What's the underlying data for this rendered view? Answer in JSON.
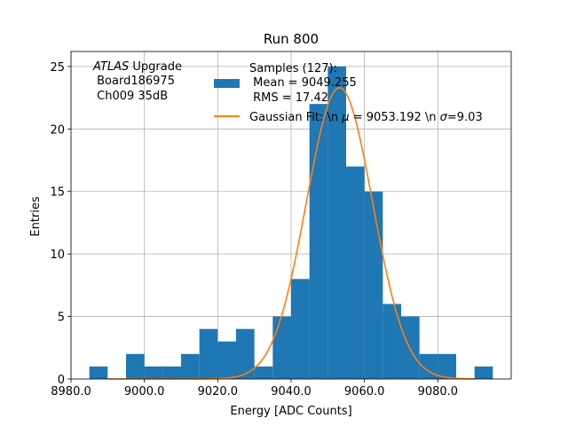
{
  "chart_data": {
    "type": "bar",
    "title": "Run 800",
    "xlabel": "Energy [ADC Counts]",
    "ylabel": "Entries",
    "xlim": [
      8980,
      9100
    ],
    "ylim": [
      0,
      26.2
    ],
    "xticks": [
      8980,
      9000,
      9020,
      9040,
      9060,
      9080
    ],
    "xtick_labels": [
      "8980.0",
      "9000.0",
      "9020.0",
      "9040.0",
      "9060.0",
      "9080.0"
    ],
    "yticks": [
      0,
      5,
      10,
      15,
      20,
      25
    ],
    "ytick_labels": [
      "0",
      "5",
      "10",
      "15",
      "20",
      "25"
    ],
    "grid": true,
    "histogram": {
      "bin_edges": [
        8985,
        8990,
        8995,
        9000,
        9005,
        9010,
        9015,
        9020,
        9025,
        9030,
        9035,
        9040,
        9045,
        9050,
        9055,
        9060,
        9065,
        9070,
        9075,
        9080,
        9085,
        9090,
        9095
      ],
      "counts": [
        1,
        0,
        2,
        1,
        1,
        2,
        4,
        3,
        4,
        1,
        5,
        8,
        22,
        25,
        17,
        15,
        6,
        5,
        2,
        2,
        0,
        1
      ],
      "color": "#1f77b4"
    },
    "fit": {
      "mean": 9053.192,
      "sigma": 9.03,
      "peak": 23.3,
      "color": "#ff7f0e"
    },
    "legend": {
      "placement": "top-right",
      "hist_label_lines": [
        "Samples (127):",
        " Mean = 9049.255",
        " RMS = 17.42"
      ],
      "fit_label_prefix": "Gaussian Fit: \\n ",
      "fit_label_mu_symbol": "μ",
      "fit_label_middle": " = 9053.192 \\n ",
      "fit_label_sigma_symbol": "σ",
      "fit_label_suffix": "=9.03"
    },
    "annotation": {
      "placement": "top-left",
      "italic_part": "ATLAS",
      "rest_part": " Upgrade",
      "line2": " Board186975",
      "line3": " Ch009 35dB"
    }
  }
}
